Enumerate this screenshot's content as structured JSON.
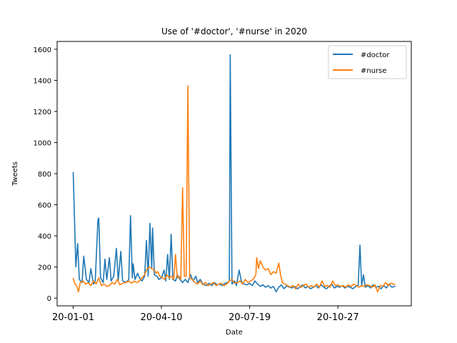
{
  "chart_data": {
    "type": "line",
    "title": "Use of '#doctor', '#nurse' in 2020",
    "xlabel": "Date",
    "ylabel": "Tweets",
    "x_ticks": [
      "20-01-01",
      "20-04-10",
      "20-07-19",
      "20-10-27"
    ],
    "x_range": [
      "2020-01-01",
      "2020-12-31"
    ],
    "y_ticks": [
      0,
      200,
      400,
      600,
      800,
      1000,
      1200,
      1400,
      1600
    ],
    "ylim": [
      -50,
      1650
    ],
    "legend_position": "top-right",
    "grid": false,
    "series": [
      {
        "name": "#doctor",
        "color": "#1f77b4",
        "points": [
          [
            "2020-01-01",
            810
          ],
          [
            "2020-01-04",
            200
          ],
          [
            "2020-01-06",
            350
          ],
          [
            "2020-01-08",
            120
          ],
          [
            "2020-01-11",
            100
          ],
          [
            "2020-01-13",
            270
          ],
          [
            "2020-01-16",
            120
          ],
          [
            "2020-01-19",
            100
          ],
          [
            "2020-01-21",
            190
          ],
          [
            "2020-01-24",
            90
          ],
          [
            "2020-01-26",
            110
          ],
          [
            "2020-01-29",
            500
          ],
          [
            "2020-01-30",
            515
          ],
          [
            "2020-02-01",
            130
          ],
          [
            "2020-02-04",
            100
          ],
          [
            "2020-02-06",
            250
          ],
          [
            "2020-02-08",
            120
          ],
          [
            "2020-02-11",
            260
          ],
          [
            "2020-02-13",
            110
          ],
          [
            "2020-02-16",
            140
          ],
          [
            "2020-02-19",
            320
          ],
          [
            "2020-02-21",
            110
          ],
          [
            "2020-02-24",
            300
          ],
          [
            "2020-02-26",
            110
          ],
          [
            "2020-03-01",
            100
          ],
          [
            "2020-03-04",
            120
          ],
          [
            "2020-03-06",
            530
          ],
          [
            "2020-03-08",
            130
          ],
          [
            "2020-03-09",
            220
          ],
          [
            "2020-03-11",
            120
          ],
          [
            "2020-03-14",
            160
          ],
          [
            "2020-03-16",
            130
          ],
          [
            "2020-03-19",
            110
          ],
          [
            "2020-03-22",
            140
          ],
          [
            "2020-03-24",
            370
          ],
          [
            "2020-03-26",
            140
          ],
          [
            "2020-03-28",
            480
          ],
          [
            "2020-03-30",
            190
          ],
          [
            "2020-03-31",
            450
          ],
          [
            "2020-04-02",
            150
          ],
          [
            "2020-04-05",
            140
          ],
          [
            "2020-04-07",
            120
          ],
          [
            "2020-04-10",
            130
          ],
          [
            "2020-04-13",
            180
          ],
          [
            "2020-04-15",
            110
          ],
          [
            "2020-04-17",
            280
          ],
          [
            "2020-04-19",
            120
          ],
          [
            "2020-04-21",
            410
          ],
          [
            "2020-04-23",
            120
          ],
          [
            "2020-04-26",
            110
          ],
          [
            "2020-04-28",
            150
          ],
          [
            "2020-05-01",
            120
          ],
          [
            "2020-05-04",
            100
          ],
          [
            "2020-05-07",
            120
          ],
          [
            "2020-05-10",
            100
          ],
          [
            "2020-05-13",
            150
          ],
          [
            "2020-05-16",
            110
          ],
          [
            "2020-05-19",
            140
          ],
          [
            "2020-05-21",
            100
          ],
          [
            "2020-05-24",
            120
          ],
          [
            "2020-05-27",
            90
          ],
          [
            "2020-05-31",
            80
          ],
          [
            "2020-06-03",
            95
          ],
          [
            "2020-06-06",
            80
          ],
          [
            "2020-06-09",
            100
          ],
          [
            "2020-06-12",
            85
          ],
          [
            "2020-06-15",
            90
          ],
          [
            "2020-06-18",
            80
          ],
          [
            "2020-06-21",
            95
          ],
          [
            "2020-06-24",
            100
          ],
          [
            "2020-06-26",
            110
          ],
          [
            "2020-06-27",
            1565
          ],
          [
            "2020-06-29",
            90
          ],
          [
            "2020-07-02",
            110
          ],
          [
            "2020-07-04",
            80
          ],
          [
            "2020-07-07",
            180
          ],
          [
            "2020-07-10",
            100
          ],
          [
            "2020-07-13",
            90
          ],
          [
            "2020-07-16",
            85
          ],
          [
            "2020-07-19",
            95
          ],
          [
            "2020-07-22",
            80
          ],
          [
            "2020-07-25",
            110
          ],
          [
            "2020-07-28",
            90
          ],
          [
            "2020-07-31",
            75
          ],
          [
            "2020-08-03",
            85
          ],
          [
            "2020-08-06",
            70
          ],
          [
            "2020-08-09",
            80
          ],
          [
            "2020-08-12",
            65
          ],
          [
            "2020-08-15",
            75
          ],
          [
            "2020-08-18",
            40
          ],
          [
            "2020-08-21",
            70
          ],
          [
            "2020-08-24",
            85
          ],
          [
            "2020-08-27",
            60
          ],
          [
            "2020-08-30",
            80
          ],
          [
            "2020-09-02",
            70
          ],
          [
            "2020-09-05",
            65
          ],
          [
            "2020-09-08",
            75
          ],
          [
            "2020-09-11",
            60
          ],
          [
            "2020-09-14",
            70
          ],
          [
            "2020-09-17",
            85
          ],
          [
            "2020-09-20",
            65
          ],
          [
            "2020-09-23",
            75
          ],
          [
            "2020-09-26",
            60
          ],
          [
            "2020-09-29",
            70
          ],
          [
            "2020-10-02",
            80
          ],
          [
            "2020-10-05",
            65
          ],
          [
            "2020-10-08",
            85
          ],
          [
            "2020-10-11",
            70
          ],
          [
            "2020-10-14",
            60
          ],
          [
            "2020-10-17",
            75
          ],
          [
            "2020-10-20",
            90
          ],
          [
            "2020-10-23",
            65
          ],
          [
            "2020-10-26",
            75
          ],
          [
            "2020-10-29",
            70
          ],
          [
            "2020-11-01",
            80
          ],
          [
            "2020-11-04",
            65
          ],
          [
            "2020-11-07",
            75
          ],
          [
            "2020-11-10",
            70
          ],
          [
            "2020-11-13",
            60
          ],
          [
            "2020-11-16",
            75
          ],
          [
            "2020-11-19",
            80
          ],
          [
            "2020-11-21",
            340
          ],
          [
            "2020-11-23",
            80
          ],
          [
            "2020-11-25",
            150
          ],
          [
            "2020-11-27",
            70
          ],
          [
            "2020-11-30",
            80
          ],
          [
            "2020-12-03",
            65
          ],
          [
            "2020-12-06",
            85
          ],
          [
            "2020-12-09",
            70
          ],
          [
            "2020-12-12",
            75
          ],
          [
            "2020-12-15",
            60
          ],
          [
            "2020-12-18",
            80
          ],
          [
            "2020-12-21",
            65
          ],
          [
            "2020-12-24",
            90
          ],
          [
            "2020-12-27",
            70
          ],
          [
            "2020-12-31",
            75
          ]
        ]
      },
      {
        "name": "#nurse",
        "color": "#ff7f0e",
        "points": [
          [
            "2020-01-01",
            130
          ],
          [
            "2020-01-03",
            90
          ],
          [
            "2020-01-05",
            80
          ],
          [
            "2020-01-07",
            40
          ],
          [
            "2020-01-09",
            100
          ],
          [
            "2020-01-12",
            110
          ],
          [
            "2020-01-15",
            90
          ],
          [
            "2020-01-18",
            100
          ],
          [
            "2020-01-21",
            80
          ],
          [
            "2020-01-24",
            110
          ],
          [
            "2020-01-27",
            90
          ],
          [
            "2020-01-30",
            130
          ],
          [
            "2020-02-02",
            80
          ],
          [
            "2020-02-05",
            90
          ],
          [
            "2020-02-08",
            75
          ],
          [
            "2020-02-11",
            80
          ],
          [
            "2020-02-14",
            100
          ],
          [
            "2020-02-17",
            90
          ],
          [
            "2020-02-20",
            120
          ],
          [
            "2020-02-23",
            85
          ],
          [
            "2020-02-26",
            95
          ],
          [
            "2020-03-01",
            100
          ],
          [
            "2020-03-04",
            110
          ],
          [
            "2020-03-07",
            95
          ],
          [
            "2020-03-10",
            110
          ],
          [
            "2020-03-13",
            100
          ],
          [
            "2020-03-16",
            110
          ],
          [
            "2020-03-19",
            130
          ],
          [
            "2020-03-22",
            150
          ],
          [
            "2020-03-24",
            180
          ],
          [
            "2020-03-27",
            200
          ],
          [
            "2020-03-30",
            190
          ],
          [
            "2020-04-02",
            180
          ],
          [
            "2020-04-04",
            160
          ],
          [
            "2020-04-06",
            170
          ],
          [
            "2020-04-08",
            140
          ],
          [
            "2020-04-11",
            130
          ],
          [
            "2020-04-14",
            120
          ],
          [
            "2020-04-16",
            150
          ],
          [
            "2020-04-19",
            130
          ],
          [
            "2020-04-22",
            140
          ],
          [
            "2020-04-24",
            120
          ],
          [
            "2020-04-26",
            280
          ],
          [
            "2020-04-28",
            130
          ],
          [
            "2020-04-30",
            140
          ],
          [
            "2020-05-02",
            120
          ],
          [
            "2020-05-04",
            710
          ],
          [
            "2020-05-06",
            140
          ],
          [
            "2020-05-08",
            140
          ],
          [
            "2020-05-10",
            1365
          ],
          [
            "2020-05-12",
            130
          ],
          [
            "2020-05-15",
            120
          ],
          [
            "2020-05-18",
            100
          ],
          [
            "2020-05-21",
            90
          ],
          [
            "2020-05-24",
            110
          ],
          [
            "2020-05-27",
            85
          ],
          [
            "2020-05-30",
            100
          ],
          [
            "2020-06-02",
            80
          ],
          [
            "2020-06-05",
            90
          ],
          [
            "2020-06-08",
            100
          ],
          [
            "2020-06-11",
            80
          ],
          [
            "2020-06-14",
            90
          ],
          [
            "2020-06-17",
            95
          ],
          [
            "2020-06-20",
            80
          ],
          [
            "2020-06-23",
            90
          ],
          [
            "2020-06-26",
            110
          ],
          [
            "2020-06-29",
            120
          ],
          [
            "2020-07-02",
            95
          ],
          [
            "2020-07-05",
            100
          ],
          [
            "2020-07-08",
            110
          ],
          [
            "2020-07-11",
            90
          ],
          [
            "2020-07-14",
            120
          ],
          [
            "2020-07-17",
            100
          ],
          [
            "2020-07-20",
            110
          ],
          [
            "2020-07-23",
            120
          ],
          [
            "2020-07-26",
            150
          ],
          [
            "2020-07-27",
            260
          ],
          [
            "2020-07-29",
            190
          ],
          [
            "2020-07-31",
            240
          ],
          [
            "2020-08-03",
            200
          ],
          [
            "2020-08-06",
            180
          ],
          [
            "2020-08-09",
            190
          ],
          [
            "2020-08-12",
            150
          ],
          [
            "2020-08-15",
            170
          ],
          [
            "2020-08-18",
            160
          ],
          [
            "2020-08-21",
            225
          ],
          [
            "2020-08-23",
            150
          ],
          [
            "2020-08-25",
            100
          ],
          [
            "2020-08-28",
            90
          ],
          [
            "2020-08-31",
            80
          ],
          [
            "2020-09-03",
            70
          ],
          [
            "2020-09-06",
            80
          ],
          [
            "2020-09-09",
            60
          ],
          [
            "2020-09-12",
            90
          ],
          [
            "2020-09-15",
            70
          ],
          [
            "2020-09-18",
            80
          ],
          [
            "2020-09-21",
            90
          ],
          [
            "2020-09-24",
            70
          ],
          [
            "2020-09-27",
            80
          ],
          [
            "2020-09-30",
            70
          ],
          [
            "2020-10-03",
            90
          ],
          [
            "2020-10-06",
            70
          ],
          [
            "2020-10-09",
            110
          ],
          [
            "2020-10-12",
            75
          ],
          [
            "2020-10-15",
            80
          ],
          [
            "2020-10-18",
            70
          ],
          [
            "2020-10-21",
            110
          ],
          [
            "2020-10-24",
            80
          ],
          [
            "2020-10-27",
            85
          ],
          [
            "2020-10-30",
            75
          ],
          [
            "2020-11-02",
            80
          ],
          [
            "2020-11-05",
            70
          ],
          [
            "2020-11-08",
            85
          ],
          [
            "2020-11-11",
            75
          ],
          [
            "2020-11-14",
            90
          ],
          [
            "2020-11-17",
            80
          ],
          [
            "2020-11-20",
            70
          ],
          [
            "2020-11-23",
            80
          ],
          [
            "2020-11-26",
            75
          ],
          [
            "2020-11-29",
            85
          ],
          [
            "2020-12-02",
            80
          ],
          [
            "2020-12-05",
            70
          ],
          [
            "2020-12-08",
            85
          ],
          [
            "2020-12-11",
            40
          ],
          [
            "2020-12-14",
            80
          ],
          [
            "2020-12-17",
            75
          ],
          [
            "2020-12-20",
            100
          ],
          [
            "2020-12-23",
            80
          ],
          [
            "2020-12-26",
            95
          ],
          [
            "2020-12-29",
            90
          ],
          [
            "2020-12-31",
            85
          ]
        ]
      }
    ]
  }
}
